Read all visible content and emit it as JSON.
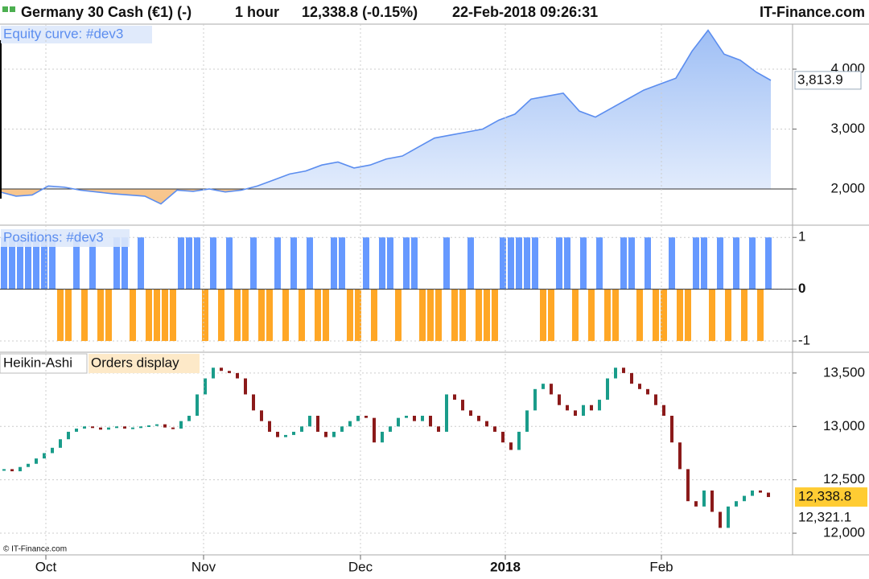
{
  "header": {
    "title": "Germany 30 Cash (€1) (-)",
    "period": "1 hour",
    "quote": "12,338.8 (-0.15%)",
    "datetime": "22-Feb-2018 09:26:31",
    "brand": "IT-Finance.com",
    "watermark": "© IT-Finance.com"
  },
  "chart_data": [
    {
      "type": "area",
      "title": "Equity curve: #dev3",
      "x": [
        0,
        2,
        4,
        6,
        8,
        10,
        12,
        14,
        16,
        18,
        20,
        22,
        24,
        26,
        28,
        30,
        32,
        34,
        36,
        38,
        40,
        42,
        44,
        46,
        48,
        50,
        52,
        54,
        56,
        58,
        60,
        62,
        64,
        66,
        68,
        70,
        72,
        74,
        76,
        78,
        80,
        82,
        84,
        86,
        88,
        90,
        92,
        94,
        95.8
      ],
      "values": [
        1950,
        1880,
        1900,
        2050,
        2030,
        1980,
        1950,
        1920,
        1900,
        1880,
        1750,
        1980,
        1960,
        2000,
        1950,
        1980,
        2050,
        2150,
        2250,
        2300,
        2400,
        2450,
        2350,
        2400,
        2500,
        2550,
        2700,
        2850,
        2900,
        2950,
        3000,
        3150,
        3250,
        3500,
        3550,
        3600,
        3300,
        3200,
        3350,
        3500,
        3650,
        3750,
        3850,
        4300,
        4650,
        4250,
        4150,
        3950,
        3813.9
      ],
      "last_value_label": "3,813.9",
      "color": "#5b8def",
      "below_color": "#f5a742",
      "xlim": [
        0,
        98.5
      ],
      "ylim": [
        1436,
        4752
      ],
      "yticks": [
        {
          "value": 2000,
          "label": "2,000"
        },
        {
          "value": 3000,
          "label": "3,000"
        },
        {
          "value": 4000,
          "label": "4,000"
        }
      ]
    },
    {
      "type": "position",
      "title": "Positions: #dev3",
      "values": [
        1,
        1,
        1,
        1,
        1,
        1,
        1,
        -1,
        -1,
        1,
        -1,
        1,
        -1,
        -1,
        1,
        1,
        -1,
        1,
        -1,
        -1,
        -1,
        -1,
        1,
        1,
        1,
        -1,
        1,
        -1,
        1,
        -1,
        -1,
        1,
        -1,
        -1,
        1,
        -1,
        1,
        -1,
        1,
        -1,
        -1,
        1,
        1,
        -1,
        -1,
        1,
        -1,
        1,
        1,
        -1,
        1,
        1,
        -1,
        -1,
        -1,
        1,
        -1,
        -1,
        1,
        -1,
        -1,
        -1,
        1,
        1,
        1,
        1,
        1,
        -1,
        -1,
        1,
        1,
        -1,
        1,
        -1,
        1,
        -1,
        -1,
        1,
        1,
        -1,
        1,
        -1,
        -1,
        1,
        -1,
        -1,
        1,
        1,
        -1,
        1,
        -1,
        1,
        -1,
        1,
        -1,
        1
      ],
      "long_color": "#6699ff",
      "short_color": "#ffa726",
      "xlim": [
        0,
        98.5
      ],
      "ylim": [
        -1.17,
        1.19
      ],
      "yticks": [
        -1,
        0,
        1
      ]
    },
    {
      "type": "heikin-ashi",
      "title": "Heikin-Ashi",
      "overlay": "Orders display",
      "values": [
        12600,
        12580,
        12620,
        12650,
        12700,
        12750,
        12800,
        12880,
        12950,
        12980,
        13000,
        12990,
        12970,
        12990,
        13000,
        12980,
        12990,
        13000,
        13010,
        13020,
        12990,
        12980,
        13050,
        13100,
        13300,
        13450,
        13550,
        13520,
        13500,
        13450,
        13300,
        13150,
        13050,
        12950,
        12900,
        12920,
        12950,
        13000,
        13100,
        12950,
        12900,
        12950,
        13000,
        13050,
        13100,
        13080,
        12850,
        12950,
        13000,
        13080,
        13100,
        13050,
        13100,
        13000,
        12950,
        13300,
        13250,
        13150,
        13100,
        13050,
        13000,
        12950,
        12850,
        12780,
        12950,
        13150,
        13350,
        13400,
        13300,
        13200,
        13150,
        13100,
        13200,
        13150,
        13250,
        13450,
        13550,
        13500,
        13400,
        13350,
        13300,
        13200,
        13100,
        12850,
        12600,
        12300,
        12250,
        12400,
        12200,
        12050,
        12250,
        12300,
        12350,
        12400,
        12380,
        12338.8
      ],
      "last_price_label": "12,338.8",
      "bid_label": "12,321.1",
      "up_color": "#1a9c8a",
      "down_color": "#8b1a1a",
      "xlim": [
        0,
        98.5
      ],
      "ylim": [
        11797,
        13680
      ],
      "yticks": [
        {
          "value": 12000,
          "label": "12,000"
        },
        {
          "value": 12500,
          "label": "12,500"
        },
        {
          "value": 13000,
          "label": "13,000"
        },
        {
          "value": 13500,
          "label": "13,500"
        }
      ],
      "xticks": [
        {
          "value": 5.7,
          "label": "Oct"
        },
        {
          "value": 25.3,
          "label": "Nov"
        },
        {
          "value": 44.8,
          "label": "Dec"
        },
        {
          "value": 62.8,
          "label": "2018"
        },
        {
          "value": 82.2,
          "label": "Feb"
        }
      ]
    }
  ]
}
